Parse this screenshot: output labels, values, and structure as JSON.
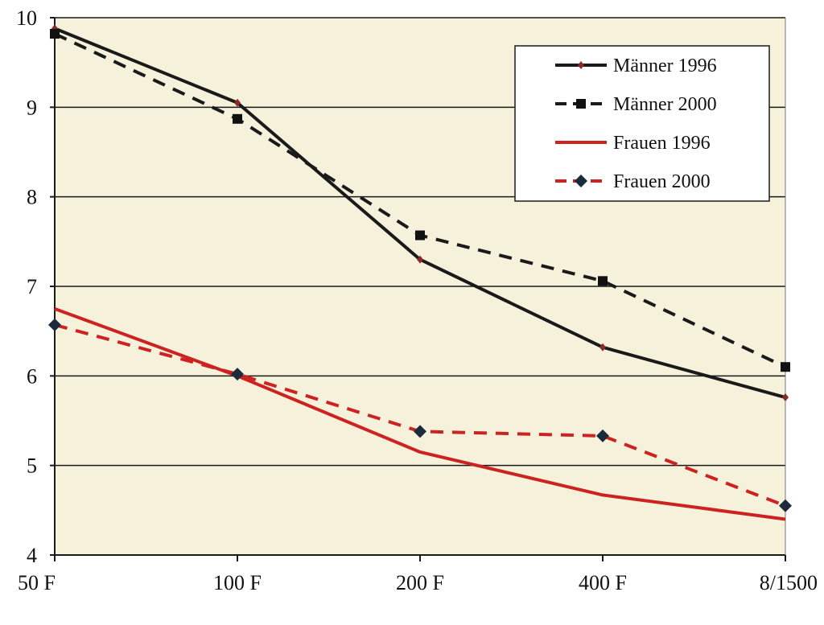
{
  "chart_data": {
    "type": "line",
    "title": "",
    "xlabel": "",
    "ylabel": "",
    "categories": [
      "50 F",
      "100 F",
      "200 F",
      "400 F",
      "8/1500"
    ],
    "ylim": [
      4,
      10
    ],
    "yticks": [
      "4",
      "5",
      "6",
      "7",
      "8",
      "9",
      "10"
    ],
    "grid": true,
    "legend_position": "top-right",
    "series": [
      {
        "name": "Männer 1996",
        "color": "#1a1a1a",
        "dash": "solid",
        "marker": "small-diamond",
        "values": [
          9.88,
          9.05,
          7.3,
          6.32,
          5.76
        ]
      },
      {
        "name": "Männer 2000",
        "color": "#1a1a1a",
        "dash": "dashed",
        "marker": "square",
        "values": [
          9.82,
          8.87,
          7.57,
          7.06,
          6.1
        ]
      },
      {
        "name": "Frauen 1996",
        "color": "#cc2222",
        "dash": "solid",
        "marker": "none",
        "values": [
          6.75,
          6.0,
          5.15,
          4.67,
          4.4
        ]
      },
      {
        "name": "Frauen 2000",
        "color": "#cc2222",
        "dash": "dashed",
        "marker": "diamond",
        "values": [
          6.57,
          6.02,
          5.38,
          5.33,
          4.55
        ]
      }
    ]
  }
}
